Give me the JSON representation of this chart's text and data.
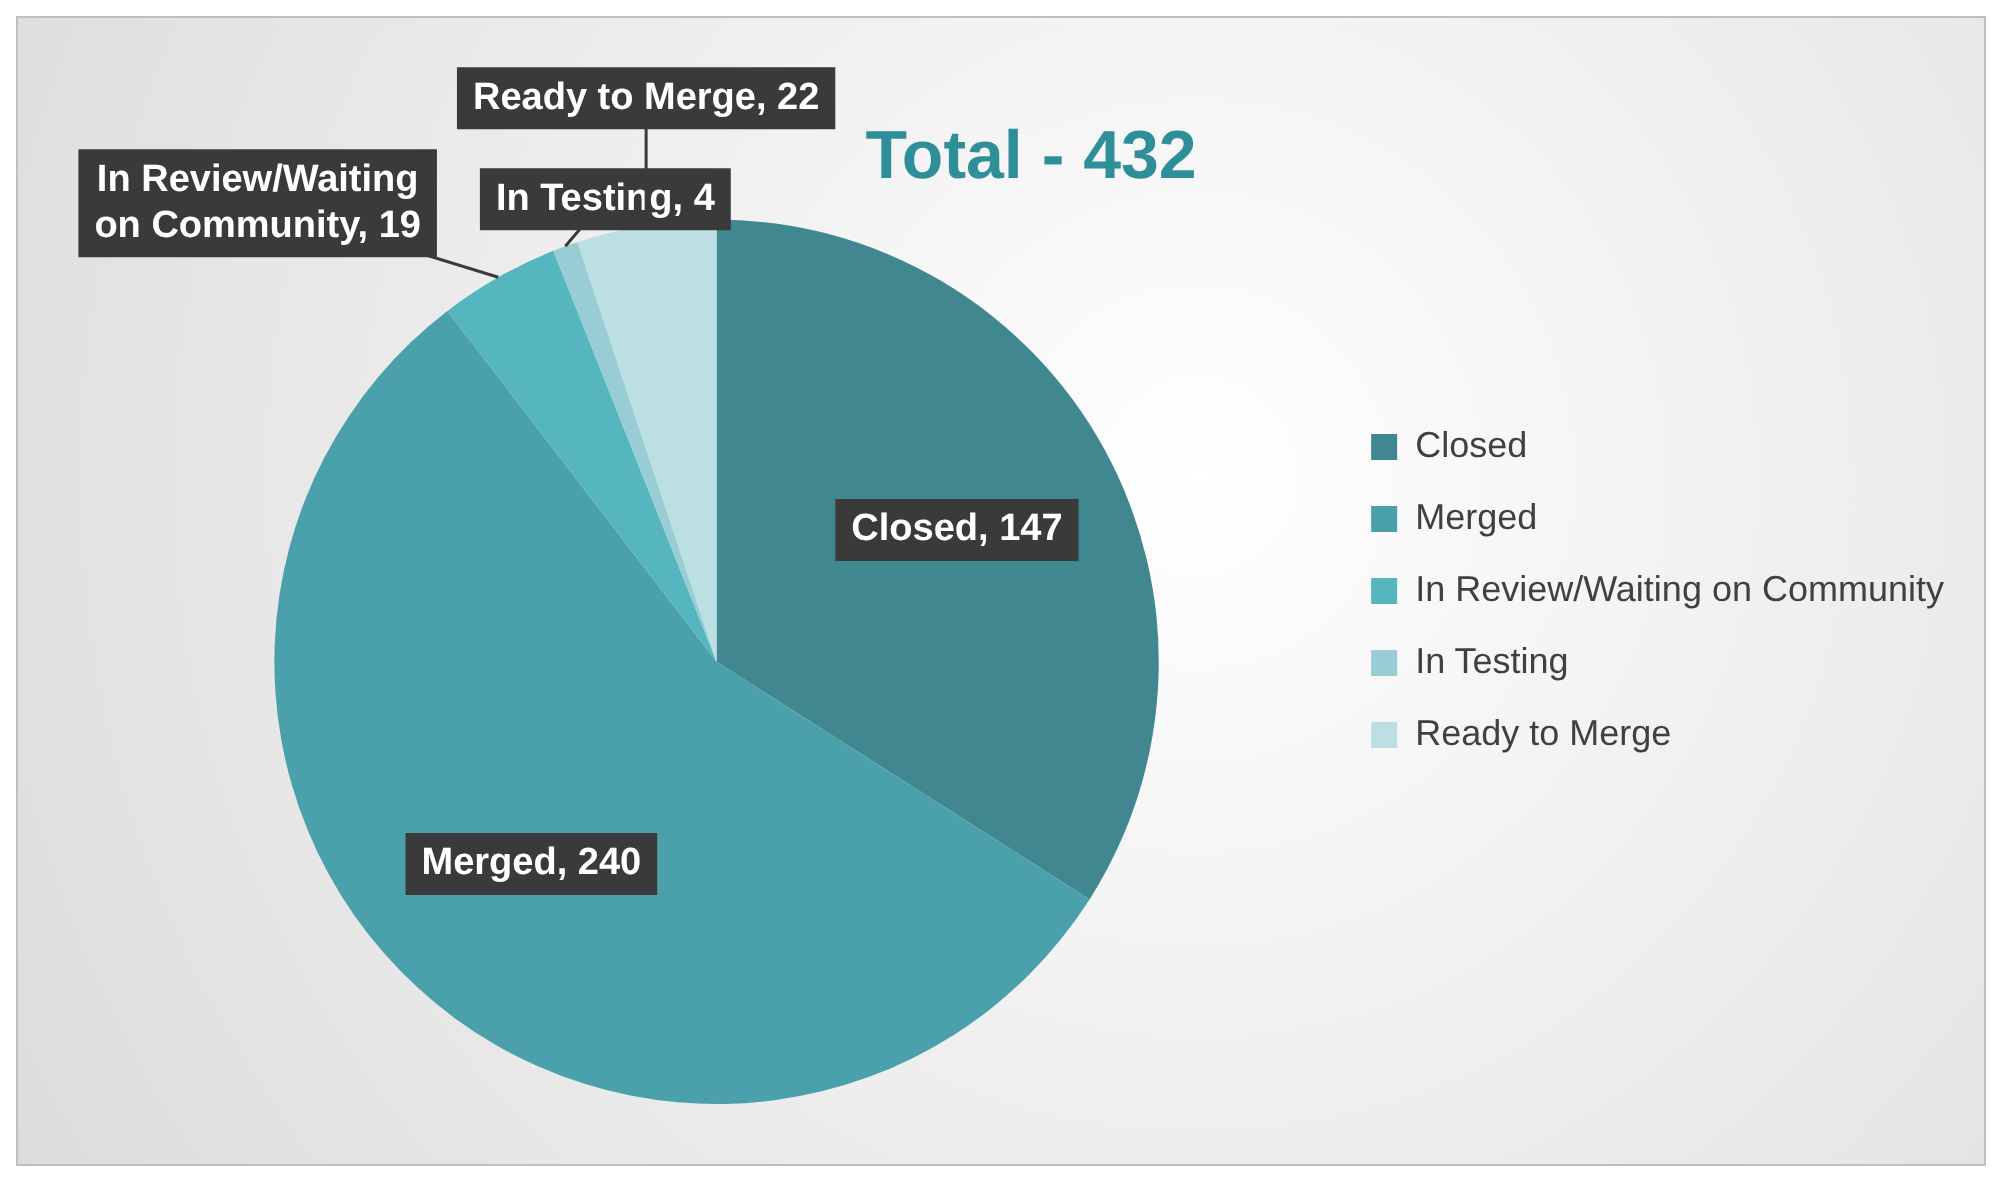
{
  "chart_data": {
    "type": "pie",
    "title": "Total - 432",
    "categories": [
      "Closed",
      "Merged",
      "In Review/Waiting on Community",
      "In Testing",
      "Ready to Merge"
    ],
    "values": [
      147,
      240,
      19,
      4,
      22
    ],
    "colors": [
      "#41878f",
      "#4aa1ab",
      "#55b6c0",
      "#98cdd4",
      "#bcdfe3"
    ],
    "value_labels": [
      "Closed, 147",
      "Merged, 240",
      "In Review/Waiting on Community, 19",
      "In Testing, 4",
      "Ready to Merge, 22"
    ],
    "legend": "right"
  }
}
